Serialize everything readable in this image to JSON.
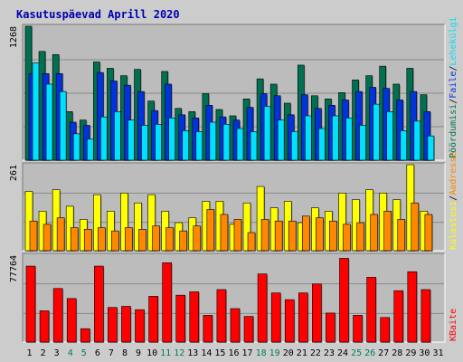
{
  "title": "Kasutuspäevad Aprill 2020",
  "colors": {
    "page_bg": "#cccccc",
    "panel_bg": "#bcbcbc",
    "title": "#0000b0",
    "hits_dark": "#007050",
    "files_blue": "#0033dd",
    "pages_cyan": "#00e0ff",
    "visits_yellow": "#ffff00",
    "sites_orange": "#ff8800",
    "kbytes_red": "#ff0000",
    "weekend_label": "#00805c"
  },
  "chart_data": [
    {
      "type": "bar",
      "panel": "hits-files-pages",
      "ymax_label": "1268",
      "ylim": [
        0,
        1268
      ],
      "legend": [
        {
          "label": "Pöördumisi",
          "color": "#007050"
        },
        {
          "label": "Faile",
          "color": "#0033dd"
        },
        {
          "label": "Lehekülgi",
          "color": "#00e0ff"
        }
      ],
      "series": [
        {
          "name": "Pöördumisi",
          "values": [
            1268,
            1030,
            1000,
            460,
            380,
            930,
            870,
            800,
            860,
            560,
            840,
            490,
            460,
            630,
            480,
            420,
            580,
            770,
            720,
            540,
            900,
            610,
            580,
            640,
            760,
            800,
            890,
            720,
            870,
            620,
            0
          ]
        },
        {
          "name": "Faile",
          "values": [
            820,
            820,
            820,
            360,
            330,
            830,
            750,
            710,
            650,
            470,
            720,
            430,
            400,
            520,
            410,
            380,
            500,
            630,
            610,
            430,
            620,
            490,
            520,
            570,
            650,
            690,
            680,
            570,
            650,
            460,
            0
          ]
        },
        {
          "name": "Lehekülgi",
          "values": [
            920,
            720,
            650,
            250,
            200,
            410,
            460,
            380,
            330,
            340,
            400,
            280,
            270,
            360,
            340,
            300,
            270,
            510,
            380,
            270,
            420,
            300,
            420,
            400,
            330,
            530,
            460,
            280,
            370,
            230,
            0
          ]
        }
      ]
    },
    {
      "type": "bar",
      "panel": "visits-sites",
      "ymax_label": "261",
      "ylim": [
        0,
        261
      ],
      "legend": [
        {
          "label": "Külastusi",
          "color": "#ffff00"
        },
        {
          "label": "Aadresse",
          "color": "#ff8800"
        }
      ],
      "series": [
        {
          "name": "Külastusi",
          "values": [
            180,
            120,
            185,
            135,
            95,
            170,
            120,
            175,
            145,
            170,
            120,
            85,
            100,
            150,
            150,
            80,
            145,
            195,
            130,
            150,
            85,
            130,
            120,
            175,
            155,
            185,
            175,
            155,
            261,
            120,
            0
          ]
        },
        {
          "name": "Aadresse",
          "values": [
            90,
            80,
            100,
            70,
            65,
            70,
            60,
            70,
            65,
            75,
            70,
            60,
            75,
            125,
            110,
            95,
            55,
            95,
            90,
            90,
            105,
            100,
            90,
            80,
            85,
            110,
            120,
            95,
            145,
            110,
            0
          ]
        }
      ]
    },
    {
      "type": "bar",
      "panel": "kbytes",
      "ymax_label": "77764",
      "ylim": [
        0,
        77764
      ],
      "legend": [
        {
          "label": "KBaite",
          "color": "#ff0000"
        }
      ],
      "series": [
        {
          "name": "KBaite",
          "values": [
            68000,
            28000,
            48000,
            39000,
            12000,
            68000,
            31000,
            32000,
            29000,
            41000,
            71000,
            42000,
            45000,
            24000,
            47000,
            30000,
            23000,
            61000,
            44000,
            38000,
            44000,
            52000,
            26000,
            75000,
            24000,
            58000,
            22000,
            46000,
            63000,
            47000,
            0
          ]
        }
      ]
    }
  ],
  "x_axis": {
    "labels": [
      "1",
      "2",
      "3",
      "4",
      "5",
      "6",
      "7",
      "8",
      "9",
      "10",
      "11",
      "12",
      "13",
      "14",
      "15",
      "16",
      "17",
      "18",
      "19",
      "20",
      "21",
      "22",
      "23",
      "24",
      "25",
      "26",
      "27",
      "28",
      "29",
      "30",
      "31"
    ],
    "weekend_days": [
      4,
      5,
      11,
      12,
      18,
      19,
      25,
      26
    ]
  },
  "right_labels": {
    "top": [
      "Pöördumisi",
      "Faile",
      "Lehekülgi"
    ],
    "middle": [
      "Külastusi",
      "Aadresse"
    ],
    "bottom": [
      "KBaite"
    ],
    "separator": "/"
  }
}
